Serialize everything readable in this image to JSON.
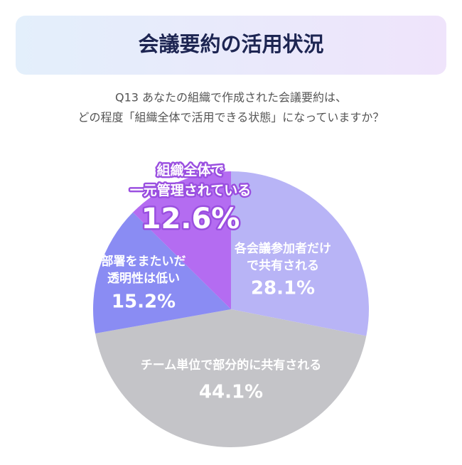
{
  "chart_data": {
    "type": "pie",
    "title": "会議要約の活用状況",
    "subtitle": [
      "Q13 あなたの組織で作成された会議要約は、",
      "どの程度「組織全体で活用できる状態」になっていますか？"
    ],
    "categories": [
      "各会議参加者だけ\nで共有される",
      "チーム単位で部分的に共有される",
      "部署をまたいだ\n透明性は低い",
      "組織全体で\n一元管理されている"
    ],
    "values": [
      28.1,
      44.1,
      15.2,
      12.6
    ],
    "value_labels": [
      "28.1%",
      "44.1%",
      "15.2%",
      "12.6%"
    ],
    "colors": [
      "#b8b4f6",
      "#c4c4c8",
      "#8a8cf3",
      "#b46cf1"
    ]
  }
}
